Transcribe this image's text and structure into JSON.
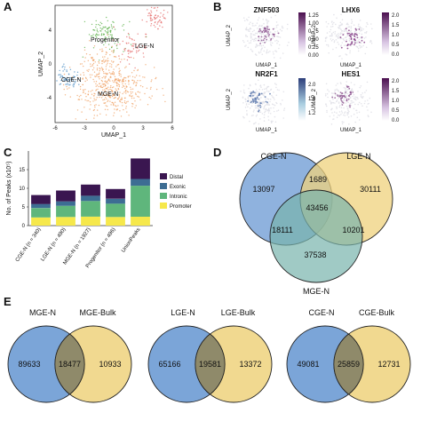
{
  "panels": {
    "a": {
      "label": "A",
      "xlabel": "UMAP_1",
      "ylabel": "UMAP_2",
      "xticks": [
        "-6",
        "-3",
        "0",
        "3",
        "6"
      ],
      "yticks": [
        "4",
        "0",
        "-4"
      ],
      "clusters": [
        {
          "name": "Progenitor",
          "color": "#5fb24c"
        },
        {
          "name": "LGE-N",
          "color": "#e56a6a"
        },
        {
          "name": "CGE-N",
          "color": "#4f90c6"
        },
        {
          "name": "MGE-N",
          "color": "#f0a266"
        }
      ]
    },
    "b": {
      "label": "B",
      "xlabel": "UMAP_1",
      "ylabel": "UMAP_2",
      "features": [
        {
          "name": "ZNF503",
          "scale": [
            "1.25",
            "1.00",
            "0.75",
            "0.50",
            "0.25",
            "0.00"
          ]
        },
        {
          "name": "LHX6",
          "scale": [
            "2.0",
            "1.5",
            "1.0",
            "0.5",
            "0.0"
          ]
        },
        {
          "name": "NR2F1",
          "scale": [
            "2.0",
            "1.6",
            "1.2"
          ]
        },
        {
          "name": "HES1",
          "scale": [
            "2.0",
            "1.5",
            "1.0",
            "0.5",
            "0.0"
          ]
        }
      ]
    },
    "c": {
      "label": "C"
    },
    "d": {
      "label": "D"
    },
    "e": {
      "label": "E"
    }
  },
  "chart_data": [
    {
      "type": "bar",
      "title": "",
      "ylabel": "No. of Peaks (x10⁵)",
      "yticks": [
        "0",
        "5",
        "10",
        "15"
      ],
      "ylim": [
        0,
        20
      ],
      "categories": [
        "CGE-N (n = 340)",
        "LGE-N (n = 490)",
        "MGE-N (n = 1927)",
        "Progenitor (n = 496)",
        "UnionPeaks"
      ],
      "stacked": true,
      "legend_position": "right",
      "series": [
        {
          "name": "Promoter",
          "color": "#f6e84b",
          "values": [
            2.2,
            2.3,
            2.4,
            2.3,
            2.4
          ]
        },
        {
          "name": "Intronic",
          "color": "#5fb67c",
          "values": [
            2.5,
            3.0,
            4.2,
            3.6,
            8.3
          ]
        },
        {
          "name": "Exonic",
          "color": "#3d6d93",
          "values": [
            1.1,
            1.2,
            1.4,
            1.3,
            1.8
          ]
        },
        {
          "name": "Distal",
          "color": "#3a1650",
          "values": [
            2.4,
            2.9,
            3.0,
            2.6,
            5.5
          ]
        }
      ],
      "legend_order": [
        "Distal",
        "Exonic",
        "Intronic",
        "Promoter"
      ]
    },
    {
      "type": "venn3",
      "sets": [
        {
          "name": "CGE-N",
          "color": "#7ba5d8"
        },
        {
          "name": "LGE-N",
          "color": "#efd27c"
        },
        {
          "name": "MGE-N",
          "color": "#77b3ad"
        }
      ],
      "regions": {
        "cge_only": 13097,
        "lge_only": 30111,
        "mge_only": 37538,
        "cge_lge": 1689,
        "cge_mge": 18111,
        "lge_mge": 10201,
        "all": 43456
      }
    },
    {
      "type": "venn2",
      "sets": [
        "MGE-N",
        "MGE-Bulk"
      ],
      "regions": {
        "left": 89633,
        "both": 18477,
        "right": 10933
      }
    },
    {
      "type": "venn2",
      "sets": [
        "LGE-N",
        "LGE-Bulk"
      ],
      "regions": {
        "left": 65166,
        "both": 19581,
        "right": 13372
      }
    },
    {
      "type": "venn2",
      "sets": [
        "CGE-N",
        "CGE-Bulk"
      ],
      "regions": {
        "left": 49081,
        "both": 25859,
        "right": 12731
      }
    }
  ],
  "colors": {
    "venn_left": "#7ba5d8",
    "venn_right": "#efd27c",
    "venn_overlap": "#8f8a6a"
  }
}
